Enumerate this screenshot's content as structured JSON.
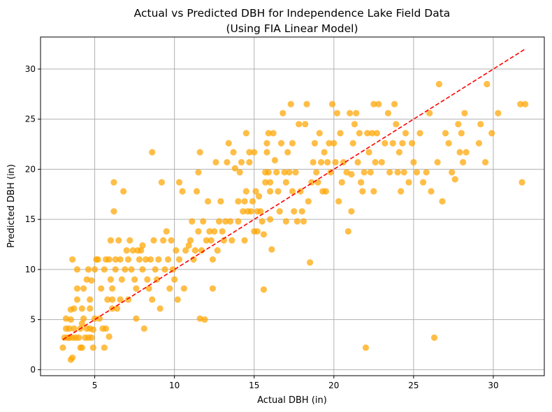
{
  "chart_data": {
    "type": "scatter",
    "title_line1": "Actual vs Predicted DBH for Independence Lake Field Data",
    "title_line2": "(Using FIA Linear Model)",
    "xlabel": "Actual DBH (in)",
    "ylabel": "Predicted DBH (in)",
    "xlim": [
      1.6,
      33.2
    ],
    "ylim": [
      -0.6,
      33.2
    ],
    "xticks": [
      5,
      10,
      15,
      20,
      25,
      30
    ],
    "yticks": [
      0,
      5,
      10,
      15,
      20,
      25,
      30
    ],
    "grid": true,
    "colors": {
      "points": "#FFA500",
      "reference_line": "#FF0000",
      "grid": "#b0b0b0"
    },
    "reference_line": {
      "style": "dashed",
      "x": [
        3.0,
        32.0
      ],
      "y": [
        3.0,
        32.0
      ]
    },
    "points": [
      [
        3.0,
        2.2
      ],
      [
        3.1,
        3.2
      ],
      [
        3.2,
        5.1
      ],
      [
        3.2,
        4.1
      ],
      [
        3.3,
        3.2
      ],
      [
        3.4,
        4.1
      ],
      [
        3.4,
        3.2
      ],
      [
        3.5,
        1.0
      ],
      [
        3.5,
        6.0
      ],
      [
        3.5,
        5.0
      ],
      [
        3.6,
        1.2
      ],
      [
        3.6,
        11.0
      ],
      [
        3.6,
        3.2
      ],
      [
        3.7,
        4.1
      ],
      [
        3.7,
        6.1
      ],
      [
        3.8,
        3.2
      ],
      [
        3.9,
        10.0
      ],
      [
        3.9,
        7.0
      ],
      [
        3.9,
        8.1
      ],
      [
        4.0,
        3.2
      ],
      [
        4.1,
        2.2
      ],
      [
        4.1,
        4.1
      ],
      [
        4.2,
        4.6
      ],
      [
        4.2,
        6.1
      ],
      [
        4.2,
        2.2
      ],
      [
        4.3,
        8.1
      ],
      [
        4.3,
        5.1
      ],
      [
        4.4,
        3.2
      ],
      [
        4.5,
        9.0
      ],
      [
        4.5,
        4.1
      ],
      [
        4.6,
        3.2
      ],
      [
        4.6,
        10.0
      ],
      [
        4.7,
        6.1
      ],
      [
        4.7,
        7.0
      ],
      [
        4.7,
        4.1
      ],
      [
        4.8,
        8.9
      ],
      [
        4.8,
        3.2
      ],
      [
        4.9,
        2.2
      ],
      [
        4.9,
        4.0
      ],
      [
        5.0,
        10.0
      ],
      [
        5.0,
        5.1
      ],
      [
        5.1,
        11.0
      ],
      [
        5.2,
        11.0
      ],
      [
        5.3,
        5.1
      ],
      [
        5.4,
        8.1
      ],
      [
        5.5,
        4.1
      ],
      [
        5.6,
        2.2
      ],
      [
        5.6,
        10.0
      ],
      [
        5.7,
        11.0
      ],
      [
        5.7,
        4.1
      ],
      [
        5.8,
        7.0
      ],
      [
        5.9,
        11.0
      ],
      [
        5.9,
        3.3
      ],
      [
        6.0,
        12.9
      ],
      [
        6.0,
        9.0
      ],
      [
        6.1,
        8.1
      ],
      [
        6.1,
        7.0
      ],
      [
        6.1,
        6.1
      ],
      [
        6.2,
        15.8
      ],
      [
        6.2,
        18.7
      ],
      [
        6.3,
        11.0
      ],
      [
        6.3,
        10.0
      ],
      [
        6.4,
        6.1
      ],
      [
        6.5,
        12.9
      ],
      [
        6.6,
        11.0
      ],
      [
        6.6,
        7.0
      ],
      [
        6.7,
        9.0
      ],
      [
        6.8,
        17.8
      ],
      [
        6.9,
        10.0
      ],
      [
        7.0,
        11.9
      ],
      [
        7.1,
        11.0
      ],
      [
        7.1,
        7.0
      ],
      [
        7.2,
        12.9
      ],
      [
        7.3,
        10.0
      ],
      [
        7.4,
        11.9
      ],
      [
        7.5,
        9.0
      ],
      [
        7.6,
        5.1
      ],
      [
        7.6,
        8.1
      ],
      [
        7.7,
        11.9
      ],
      [
        7.8,
        11.0
      ],
      [
        7.9,
        11.9
      ],
      [
        8.0,
        12.4
      ],
      [
        8.0,
        10.0
      ],
      [
        8.1,
        4.1
      ],
      [
        8.2,
        11.0
      ],
      [
        8.3,
        9.0
      ],
      [
        8.4,
        8.1
      ],
      [
        8.5,
        11.0
      ],
      [
        8.6,
        21.7
      ],
      [
        8.6,
        7.0
      ],
      [
        8.7,
        12.9
      ],
      [
        8.8,
        10.0
      ],
      [
        8.9,
        9.0
      ],
      [
        9.0,
        11.0
      ],
      [
        9.1,
        6.1
      ],
      [
        9.2,
        18.7
      ],
      [
        9.3,
        12.9
      ],
      [
        9.4,
        10.0
      ],
      [
        9.5,
        13.8
      ],
      [
        9.6,
        11.0
      ],
      [
        9.7,
        8.1
      ],
      [
        9.8,
        12.9
      ],
      [
        9.9,
        10.0
      ],
      [
        10.0,
        9.0
      ],
      [
        10.1,
        11.9
      ],
      [
        10.2,
        7.0
      ],
      [
        10.3,
        18.7
      ],
      [
        10.3,
        11.0
      ],
      [
        10.5,
        17.8
      ],
      [
        10.6,
        8.1
      ],
      [
        10.7,
        11.9
      ],
      [
        10.9,
        12.4
      ],
      [
        11.0,
        12.9
      ],
      [
        11.1,
        14.8
      ],
      [
        11.2,
        11.0
      ],
      [
        11.3,
        11.9
      ],
      [
        11.4,
        17.8
      ],
      [
        11.5,
        19.7
      ],
      [
        11.5,
        13.8
      ],
      [
        11.6,
        21.7
      ],
      [
        11.6,
        5.1
      ],
      [
        11.7,
        11.9
      ],
      [
        11.8,
        14.8
      ],
      [
        11.9,
        5.0
      ],
      [
        12.0,
        12.9
      ],
      [
        12.1,
        16.8
      ],
      [
        12.2,
        13.8
      ],
      [
        12.3,
        12.9
      ],
      [
        12.4,
        8.1
      ],
      [
        12.4,
        11.0
      ],
      [
        12.5,
        13.8
      ],
      [
        12.6,
        20.7
      ],
      [
        12.7,
        11.9
      ],
      [
        12.8,
        14.8
      ],
      [
        12.9,
        16.8
      ],
      [
        13.0,
        13.8
      ],
      [
        13.1,
        12.9
      ],
      [
        13.2,
        14.8
      ],
      [
        13.3,
        20.7
      ],
      [
        13.4,
        22.6
      ],
      [
        13.5,
        14.8
      ],
      [
        13.6,
        12.9
      ],
      [
        13.7,
        21.7
      ],
      [
        13.8,
        20.1
      ],
      [
        14.0,
        14.8
      ],
      [
        14.0,
        16.8
      ],
      [
        14.1,
        19.7
      ],
      [
        14.2,
        20.7
      ],
      [
        14.3,
        15.8
      ],
      [
        14.4,
        16.8
      ],
      [
        14.4,
        12.9
      ],
      [
        14.5,
        23.6
      ],
      [
        14.5,
        17.8
      ],
      [
        14.6,
        15.8
      ],
      [
        14.7,
        21.7
      ],
      [
        14.7,
        20.7
      ],
      [
        14.8,
        15.8
      ],
      [
        14.9,
        16.8
      ],
      [
        15.0,
        13.8
      ],
      [
        15.0,
        21.7
      ],
      [
        15.1,
        17.8
      ],
      [
        15.2,
        15.8
      ],
      [
        15.2,
        13.8
      ],
      [
        15.3,
        17.3
      ],
      [
        15.4,
        15.8
      ],
      [
        15.5,
        14.8
      ],
      [
        15.6,
        13.5
      ],
      [
        15.6,
        8.0
      ],
      [
        15.7,
        19.7
      ],
      [
        15.7,
        18.7
      ],
      [
        15.8,
        22.6
      ],
      [
        15.8,
        21.7
      ],
      [
        15.9,
        23.6
      ],
      [
        15.9,
        19.7
      ],
      [
        16.0,
        18.7
      ],
      [
        16.0,
        17.8
      ],
      [
        16.0,
        15.0
      ],
      [
        16.1,
        12.0
      ],
      [
        16.2,
        23.6
      ],
      [
        16.3,
        20.9
      ],
      [
        16.4,
        19.7
      ],
      [
        16.5,
        17.8
      ],
      [
        16.6,
        15.8
      ],
      [
        16.7,
        22.6
      ],
      [
        16.8,
        25.6
      ],
      [
        16.9,
        19.7
      ],
      [
        17.0,
        18.7
      ],
      [
        17.0,
        14.8
      ],
      [
        17.1,
        21.7
      ],
      [
        17.2,
        19.7
      ],
      [
        17.3,
        26.5
      ],
      [
        17.4,
        17.8
      ],
      [
        17.4,
        22.6
      ],
      [
        17.5,
        15.8
      ],
      [
        17.6,
        19.7
      ],
      [
        17.7,
        14.8
      ],
      [
        17.8,
        24.5
      ],
      [
        17.9,
        17.8
      ],
      [
        18.0,
        15.8
      ],
      [
        18.1,
        14.8
      ],
      [
        18.2,
        24.5
      ],
      [
        18.3,
        26.5
      ],
      [
        18.4,
        16.8
      ],
      [
        18.5,
        10.7
      ],
      [
        18.6,
        18.7
      ],
      [
        18.7,
        20.7
      ],
      [
        18.8,
        22.6
      ],
      [
        18.9,
        19.7
      ],
      [
        19.0,
        18.7
      ],
      [
        19.1,
        23.6
      ],
      [
        19.2,
        20.7
      ],
      [
        19.3,
        17.8
      ],
      [
        19.4,
        21.7
      ],
      [
        19.5,
        17.8
      ],
      [
        19.6,
        20.7
      ],
      [
        19.7,
        22.6
      ],
      [
        19.8,
        19.7
      ],
      [
        19.9,
        26.5
      ],
      [
        20.0,
        22.6
      ],
      [
        20.1,
        20.7
      ],
      [
        20.2,
        25.6
      ],
      [
        20.3,
        16.8
      ],
      [
        20.4,
        23.6
      ],
      [
        20.5,
        18.7
      ],
      [
        20.6,
        20.7
      ],
      [
        20.8,
        19.7
      ],
      [
        20.9,
        13.8
      ],
      [
        21.0,
        25.6
      ],
      [
        21.1,
        15.8
      ],
      [
        21.1,
        19.5
      ],
      [
        21.2,
        22.6
      ],
      [
        21.3,
        24.5
      ],
      [
        21.4,
        25.6
      ],
      [
        21.5,
        20.7
      ],
      [
        21.6,
        23.6
      ],
      [
        21.7,
        18.7
      ],
      [
        21.8,
        17.8
      ],
      [
        21.9,
        19.7
      ],
      [
        22.0,
        2.2
      ],
      [
        22.1,
        23.6
      ],
      [
        22.2,
        21.7
      ],
      [
        22.3,
        19.7
      ],
      [
        22.4,
        23.6
      ],
      [
        22.5,
        17.8
      ],
      [
        22.5,
        26.5
      ],
      [
        22.6,
        20.7
      ],
      [
        22.7,
        23.6
      ],
      [
        22.8,
        26.5
      ],
      [
        23.0,
        20.7
      ],
      [
        23.2,
        22.6
      ],
      [
        23.4,
        25.6
      ],
      [
        23.5,
        19.7
      ],
      [
        23.7,
        22.6
      ],
      [
        23.8,
        26.5
      ],
      [
        23.9,
        24.5
      ],
      [
        24.0,
        19.7
      ],
      [
        24.1,
        21.7
      ],
      [
        24.2,
        17.8
      ],
      [
        24.3,
        22.6
      ],
      [
        24.4,
        19.7
      ],
      [
        24.5,
        23.6
      ],
      [
        24.7,
        18.7
      ],
      [
        24.9,
        22.6
      ],
      [
        25.0,
        20.7
      ],
      [
        25.2,
        19.7
      ],
      [
        25.4,
        23.6
      ],
      [
        25.6,
        18.7
      ],
      [
        25.8,
        19.7
      ],
      [
        26.0,
        25.6
      ],
      [
        26.1,
        17.8
      ],
      [
        26.3,
        3.2
      ],
      [
        26.5,
        20.7
      ],
      [
        26.6,
        28.5
      ],
      [
        26.8,
        16.8
      ],
      [
        27.0,
        23.6
      ],
      [
        27.2,
        22.6
      ],
      [
        27.4,
        19.7
      ],
      [
        27.6,
        19.0
      ],
      [
        27.8,
        24.5
      ],
      [
        27.9,
        21.7
      ],
      [
        28.0,
        23.6
      ],
      [
        28.1,
        20.7
      ],
      [
        28.2,
        25.6
      ],
      [
        28.3,
        21.7
      ],
      [
        29.1,
        22.6
      ],
      [
        29.2,
        24.5
      ],
      [
        29.5,
        20.7
      ],
      [
        29.6,
        28.5
      ],
      [
        29.9,
        23.6
      ],
      [
        30.3,
        25.6
      ],
      [
        31.7,
        26.5
      ],
      [
        31.8,
        18.7
      ],
      [
        32.0,
        26.5
      ]
    ]
  }
}
